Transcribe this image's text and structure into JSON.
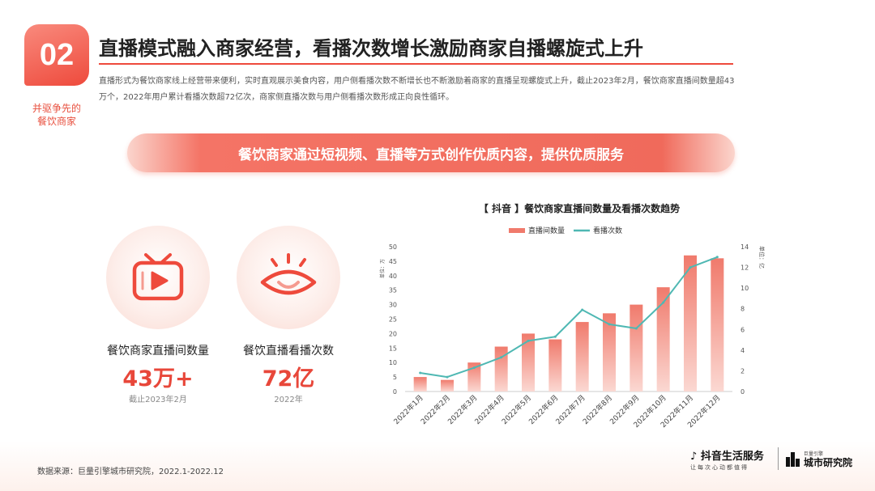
{
  "section": {
    "number": "02",
    "label_line1": "并驱争先的",
    "label_line2": "餐饮商家"
  },
  "title": "直播模式融入商家经营，看播次数增长激励商家自播螺旋式上升",
  "description": "直播形式为餐饮商家线上经营带来便利，实时直观展示美食内容，用户侧看播次数不断增长也不断激励着商家的直播呈现螺旋式上升，截止2023年2月，餐饮商家直播间数量超43万个，2022年用户累计看播次数超72亿次，商家侧直播次数与用户侧看播次数形成正向良性循环。",
  "banner": "餐饮商家通过短视频、直播等方式创作优质内容，提供优质服务",
  "stats": [
    {
      "label": "餐饮商家直播间数量",
      "value": "43万+",
      "note": "截止2023年2月",
      "icon": "tv-play-icon"
    },
    {
      "label": "餐饮直播看播次数",
      "value": "72亿",
      "note": "2022年",
      "icon": "eye-icon"
    }
  ],
  "chart_title": "【 抖音 】餐饮商家直播间数量及看播次数趋势",
  "chart_data": {
    "type": "bar",
    "categories": [
      "2022年1月",
      "2022年2月",
      "2022年3月",
      "2022年4月",
      "2022年5月",
      "2022年6月",
      "2022年7月",
      "2022年8月",
      "2022年9月",
      "2022年10月",
      "2022年11月",
      "2022年12月"
    ],
    "series": [
      {
        "name": "直播间数量",
        "type": "bar",
        "axis": "left",
        "values": [
          5,
          4,
          10,
          15.5,
          20,
          18,
          24,
          27,
          30,
          36,
          47,
          46
        ],
        "color": "#f07a6c"
      },
      {
        "name": "看播次数",
        "type": "line",
        "axis": "right",
        "values": [
          1.8,
          1.4,
          2.3,
          3.3,
          4.9,
          5.3,
          7.9,
          6.5,
          6.1,
          8.6,
          12.0,
          13.0
        ],
        "color": "#4fb8b3"
      }
    ],
    "ylabel": "单位：万",
    "y2label": "单位：亿",
    "ylim": [
      0,
      50
    ],
    "y2lim": [
      0,
      14
    ],
    "yticks": [
      0,
      5,
      10,
      15,
      20,
      25,
      30,
      35,
      40,
      45,
      50
    ],
    "y2ticks": [
      0,
      2,
      4,
      6,
      8,
      10,
      12,
      14
    ],
    "legend": "top",
    "grid": false
  },
  "footer": {
    "source": "数据来源：巨量引擎城市研究院，2022.1-2022.12",
    "logo1": "抖音生活服务",
    "logo1_sub": "让每次心动都值得",
    "logo2_sub": "巨量引擎",
    "logo2": "城市研究院"
  },
  "colors": {
    "accent": "#ee4a3c",
    "bar": "#f07a6c",
    "line": "#4fb8b3"
  }
}
